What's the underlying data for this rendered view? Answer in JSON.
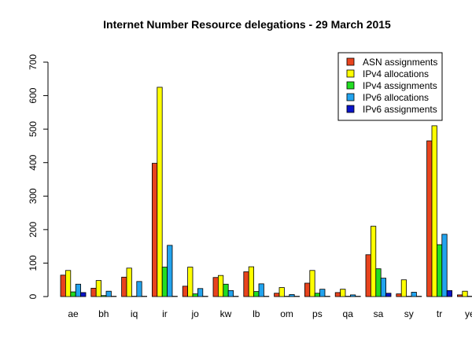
{
  "chart_data": {
    "type": "bar",
    "title": "Internet Number Resource delegations - 29 March 2015",
    "xlabel": "",
    "ylabel": "",
    "ylim": [
      0,
      700
    ],
    "yticks": [
      "0",
      "100",
      "200",
      "300",
      "400",
      "500",
      "600",
      "700"
    ],
    "grid": false,
    "legend_position": "top-right",
    "categories": [
      "ae",
      "bh",
      "iq",
      "ir",
      "jo",
      "kw",
      "lb",
      "om",
      "ps",
      "qa",
      "sa",
      "sy",
      "tr",
      "ye"
    ],
    "series": [
      {
        "name": "ASN assignments",
        "color": "#e8431d",
        "values": [
          64,
          25,
          58,
          398,
          31,
          57,
          74,
          10,
          40,
          12,
          125,
          8,
          465,
          5
        ]
      },
      {
        "name": "IPv4 allocations",
        "color": "#ffff00",
        "values": [
          78,
          48,
          85,
          625,
          88,
          63,
          89,
          27,
          78,
          22,
          210,
          50,
          510,
          16
        ]
      },
      {
        "name": "IPv4 assignments",
        "color": "#22dd22",
        "values": [
          14,
          3,
          1,
          88,
          8,
          37,
          15,
          1,
          10,
          1,
          83,
          1,
          155,
          1
        ]
      },
      {
        "name": "IPv6 allocations",
        "color": "#22a3ee",
        "values": [
          37,
          16,
          45,
          153,
          24,
          18,
          38,
          6,
          22,
          5,
          55,
          13,
          186,
          6
        ]
      },
      {
        "name": "IPv6 assignments",
        "color": "#0a14c8",
        "values": [
          12,
          1,
          1,
          1,
          1,
          1,
          1,
          1,
          1,
          1,
          10,
          1,
          18,
          1
        ]
      }
    ]
  }
}
